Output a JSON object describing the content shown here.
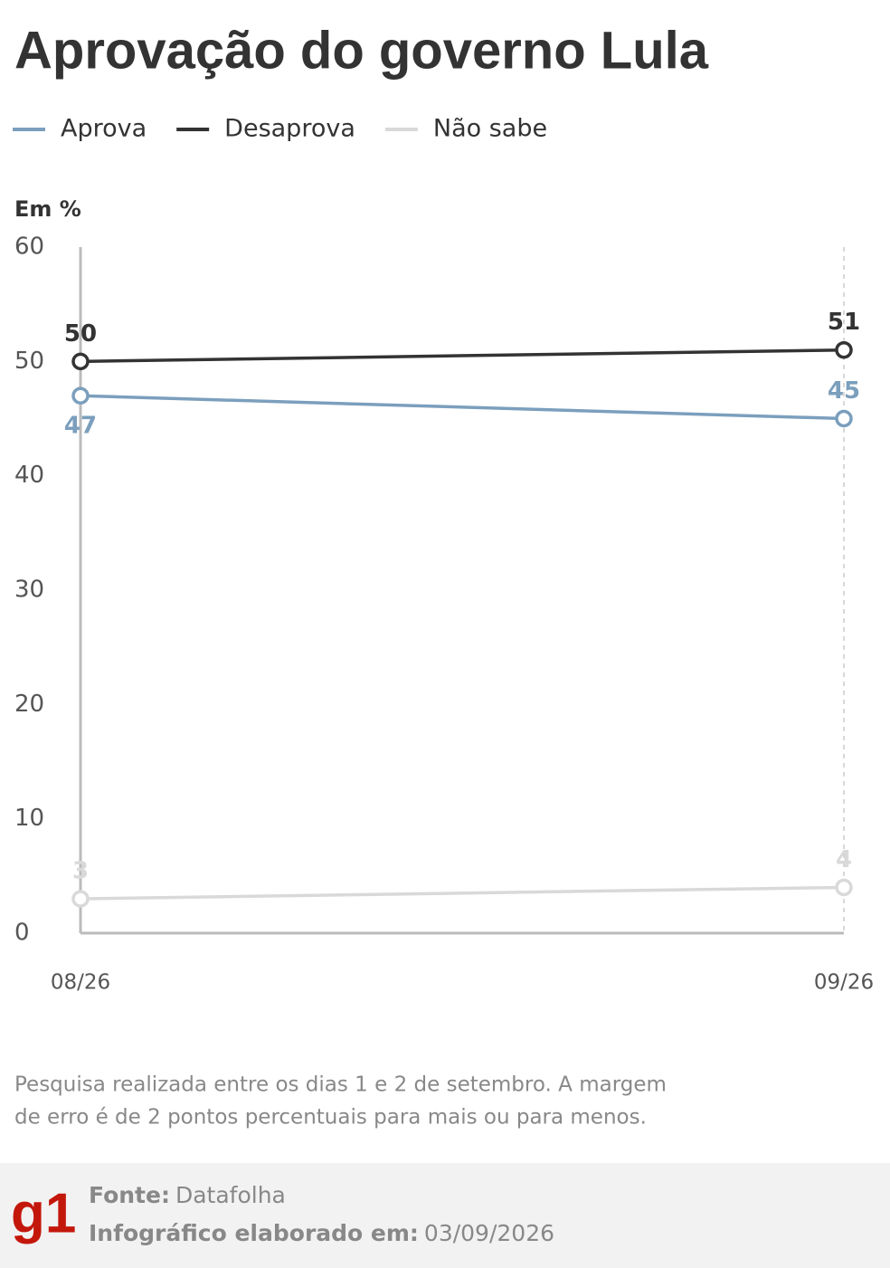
{
  "chart_data": {
    "type": "line",
    "title": "Aprovação do governo Lula",
    "y_label": "Em %",
    "categories": [
      "08/26",
      "09/26"
    ],
    "series": [
      {
        "name": "Aprova",
        "color": "#7b9fbd",
        "values": [
          47,
          45
        ]
      },
      {
        "name": "Desaprova",
        "color": "#333333",
        "values": [
          50,
          51
        ]
      },
      {
        "name": "Não sabe",
        "color": "#d9d9d9",
        "values": [
          3,
          4
        ]
      }
    ],
    "ylim": [
      0,
      60
    ],
    "yticks": [
      0,
      10,
      20,
      30,
      40,
      50,
      60
    ],
    "note": [
      "Pesquisa realizada entre os dias 1 e 2 de setembro. A margem",
      "de erro é de 2 pontos percentuais para mais ou para menos."
    ],
    "footer": {
      "logo": "g1",
      "source_label": "Fonte:",
      "source": "Datafolha",
      "date_label": "Infográfico elaborado em:",
      "date": "03/09/2026"
    }
  }
}
